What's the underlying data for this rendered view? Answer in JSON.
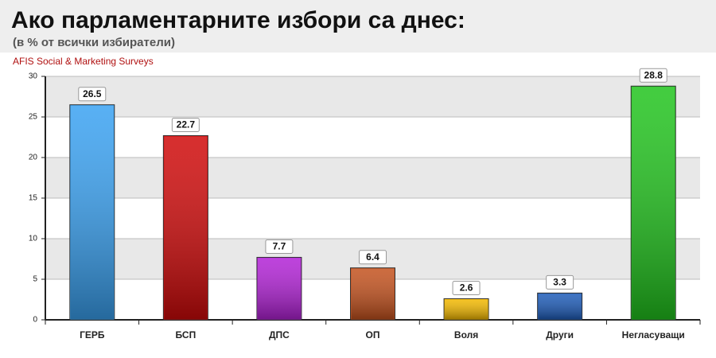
{
  "chart_data": {
    "type": "bar",
    "title": "Ако парламентарните избори са днес:",
    "subtitle": "(в % от всички избиратели)",
    "source": "AFIS Social & Marketing Surveys",
    "categories": [
      "ГЕРБ",
      "БСП",
      "ДПС",
      "ОП",
      "Воля",
      "Други",
      "Негласуващи"
    ],
    "values": [
      26.5,
      22.7,
      7.7,
      6.4,
      2.6,
      3.3,
      28.8
    ],
    "colors": [
      "#3aa2f2",
      "#d00a0a",
      "#b222d6",
      "#c4521e",
      "#f2b800",
      "#1e5cb8",
      "#22c41e"
    ],
    "ylim": [
      0,
      30
    ],
    "yticks": [
      0,
      5,
      10,
      15,
      20,
      25,
      30
    ],
    "grid": true
  }
}
